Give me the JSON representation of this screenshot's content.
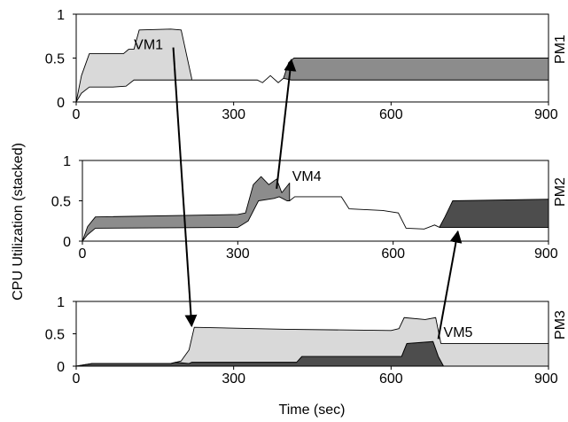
{
  "ylabel": "CPU Utilization (stacked)",
  "xlabel": "Time (sec)",
  "colors": {
    "vm_light": "#d9d9d9",
    "vm_mid": "#8c8c8c",
    "vm_dark": "#4d4d4d",
    "ink": "#000000"
  },
  "chart_data": [
    {
      "type": "area",
      "panel_label": "PM1",
      "xlim": [
        0,
        900
      ],
      "ylim": [
        0,
        1
      ],
      "x_ticks": [
        "0",
        "300",
        "600",
        "900"
      ],
      "y_ticks": [
        "0",
        "0.5",
        "1"
      ],
      "series": [
        {
          "name": "VM1",
          "color": "vm_light",
          "lower": [
            [
              0,
              0
            ],
            [
              10,
              0.1
            ],
            [
              25,
              0.17
            ],
            [
              70,
              0.17
            ],
            [
              95,
              0.18
            ],
            [
              110,
              0.25
            ],
            [
              200,
              0.25
            ],
            [
              220,
              0.25
            ]
          ],
          "upper": [
            [
              0,
              0
            ],
            [
              10,
              0.3
            ],
            [
              25,
              0.55
            ],
            [
              90,
              0.55
            ],
            [
              100,
              0.6
            ],
            [
              110,
              0.6
            ],
            [
              120,
              0.82
            ],
            [
              180,
              0.83
            ],
            [
              200,
              0.82
            ],
            [
              220,
              0.27
            ]
          ]
        },
        {
          "name": "",
          "color": "vm_mid",
          "lower": [
            [
              395,
              0.27
            ],
            [
              410,
              0.25
            ],
            [
              900,
              0.25
            ]
          ],
          "upper": [
            [
              395,
              0.27
            ],
            [
              405,
              0.45
            ],
            [
              415,
              0.5
            ],
            [
              900,
              0.5
            ]
          ]
        }
      ],
      "baseline": [
        [
          220,
          0.25
        ],
        [
          330,
          0.25
        ],
        [
          345,
          0.25
        ],
        [
          355,
          0.22
        ],
        [
          370,
          0.3
        ],
        [
          385,
          0.22
        ],
        [
          395,
          0.27
        ]
      ],
      "labels": [
        {
          "text": "VM1",
          "x": 110,
          "y": 0.6
        }
      ]
    },
    {
      "type": "area",
      "panel_label": "PM2",
      "xlim": [
        0,
        900
      ],
      "ylim": [
        0,
        1
      ],
      "x_ticks": [
        "0",
        "300",
        "600",
        "900"
      ],
      "y_ticks": [
        "0",
        "0.5",
        "1"
      ],
      "series": [
        {
          "name": "",
          "color": "vm_mid",
          "lower": [
            [
              0,
              0
            ],
            [
              10,
              0.08
            ],
            [
              25,
              0.16
            ],
            [
              300,
              0.17
            ],
            [
              320,
              0.25
            ],
            [
              340,
              0.5
            ],
            [
              370,
              0.53
            ],
            [
              380,
              0.55
            ],
            [
              395,
              0.5
            ],
            [
              400,
              0.5
            ]
          ],
          "upper": [
            [
              0,
              0
            ],
            [
              10,
              0.18
            ],
            [
              25,
              0.3
            ],
            [
              300,
              0.33
            ],
            [
              315,
              0.35
            ],
            [
              330,
              0.7
            ],
            [
              345,
              0.8
            ],
            [
              360,
              0.7
            ],
            [
              375,
              0.77
            ],
            [
              385,
              0.6
            ],
            [
              400,
              0.72
            ]
          ]
        },
        {
          "name": "",
          "color": "vm_dark",
          "lower": [
            [
              690,
              0.17
            ],
            [
              900,
              0.17
            ]
          ],
          "upper": [
            [
              690,
              0.18
            ],
            [
              700,
              0.3
            ],
            [
              715,
              0.5
            ],
            [
              900,
              0.52
            ]
          ]
        }
      ],
      "baseline": [
        [
          400,
          0.5
        ],
        [
          410,
          0.55
        ],
        [
          500,
          0.55
        ],
        [
          515,
          0.4
        ],
        [
          580,
          0.38
        ],
        [
          610,
          0.35
        ],
        [
          625,
          0.16
        ],
        [
          660,
          0.15
        ],
        [
          680,
          0.2
        ],
        [
          690,
          0.17
        ]
      ],
      "labels": [
        {
          "text": "VM4",
          "x": 405,
          "y": 0.75
        }
      ]
    },
    {
      "type": "area",
      "panel_label": "PM3",
      "xlim": [
        0,
        900
      ],
      "ylim": [
        0,
        1
      ],
      "x_ticks": [
        "0",
        "300",
        "600",
        "900"
      ],
      "y_ticks": [
        "0",
        "0.5",
        "1"
      ],
      "series": [
        {
          "name": "",
          "color": "vm_dark",
          "lower": [
            [
              0,
              0
            ],
            [
              900,
              0
            ]
          ],
          "upper": [
            [
              0,
              0
            ],
            [
              30,
              0.04
            ],
            [
              180,
              0.04
            ],
            [
              190,
              0.06
            ],
            [
              215,
              0.04
            ],
            [
              220,
              0.06
            ],
            [
              420,
              0.06
            ],
            [
              430,
              0.15
            ],
            [
              620,
              0.15
            ],
            [
              630,
              0.35
            ],
            [
              680,
              0.38
            ],
            [
              690,
              0.15
            ],
            [
              700,
              0
            ]
          ]
        },
        {
          "name": "",
          "color": "vm_light",
          "lower": [
            [
              0,
              0
            ],
            [
              30,
              0.04
            ],
            [
              180,
              0.04
            ],
            [
              190,
              0.06
            ],
            [
              215,
              0.04
            ],
            [
              220,
              0.06
            ],
            [
              420,
              0.06
            ],
            [
              430,
              0.15
            ],
            [
              620,
              0.15
            ],
            [
              630,
              0.35
            ],
            [
              680,
              0.38
            ],
            [
              690,
              0.15
            ],
            [
              700,
              0
            ],
            [
              900,
              0
            ]
          ],
          "upper": [
            [
              0,
              0
            ],
            [
              30,
              0.04
            ],
            [
              180,
              0.04
            ],
            [
              200,
              0.08
            ],
            [
              215,
              0.25
            ],
            [
              225,
              0.6
            ],
            [
              400,
              0.57
            ],
            [
              600,
              0.55
            ],
            [
              615,
              0.58
            ],
            [
              625,
              0.75
            ],
            [
              665,
              0.72
            ],
            [
              685,
              0.75
            ],
            [
              695,
              0.35
            ],
            [
              900,
              0.35
            ]
          ]
        }
      ],
      "baseline": [],
      "labels": [
        {
          "text": "VM5",
          "x": 700,
          "y": 0.45
        }
      ]
    }
  ],
  "arrows": [
    {
      "from_panel": 0,
      "from": [
        185,
        0.62
      ],
      "to_panel": 2,
      "to": [
        220,
        0.62
      ]
    },
    {
      "from_panel": 1,
      "from": [
        375,
        0.65
      ],
      "to_panel": 0,
      "to": [
        410,
        0.48
      ]
    },
    {
      "from_panel": 2,
      "from": [
        690,
        0.42
      ],
      "to_panel": 1,
      "to": [
        725,
        0.12
      ]
    }
  ]
}
